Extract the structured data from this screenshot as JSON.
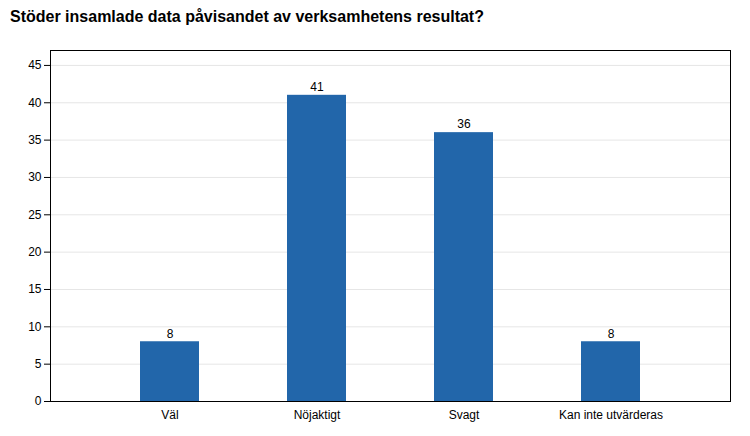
{
  "chart_data": {
    "type": "bar",
    "title": "Stöder insamlade data påvisandet av verksamhetens resultat?",
    "categories": [
      "Väl",
      "Nöjaktigt",
      "Svagt",
      "Kan inte utvärderas"
    ],
    "values": [
      8,
      41,
      36,
      8
    ],
    "color": "#2266aa",
    "ylim": [
      0,
      47
    ],
    "yticks": [
      0,
      5,
      10,
      15,
      20,
      25,
      30,
      35,
      40,
      45
    ],
    "grid": true,
    "data_labels": true
  }
}
